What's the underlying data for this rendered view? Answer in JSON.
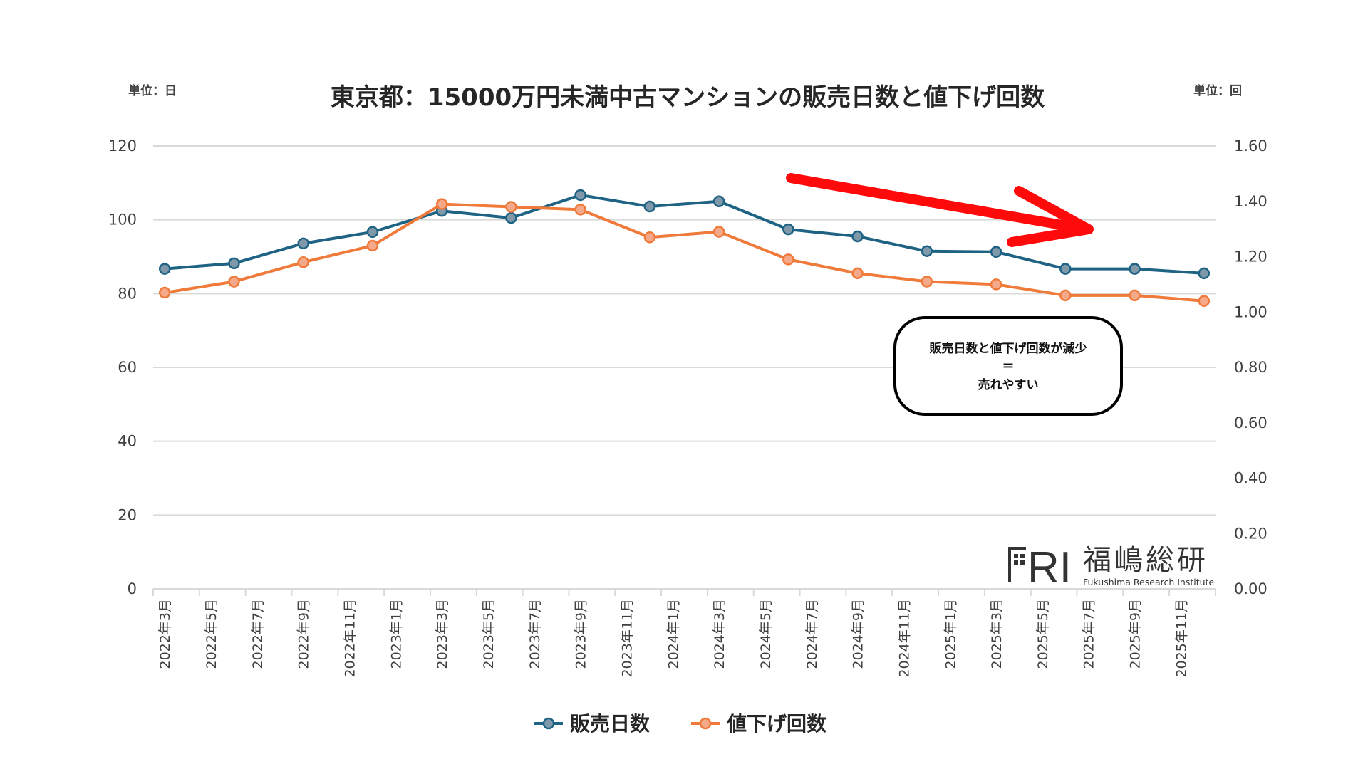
{
  "chart_data": {
    "type": "line",
    "title": "東京都：15000万円未満中古マンションの販売日数と値下げ回数",
    "left_unit_label": "単位：日",
    "right_unit_label": "単位：回",
    "x_tick_labels": [
      "2022年3月",
      "2022年5月",
      "2022年7月",
      "2022年9月",
      "2022年11月",
      "2023年1月",
      "2023年3月",
      "2023年5月",
      "2023年7月",
      "2023年9月",
      "2023年11月",
      "2024年1月",
      "2024年3月",
      "2024年5月",
      "2024年7月",
      "2024年9月",
      "2024年11月",
      "2025年1月",
      "2025年3月",
      "2025年5月",
      "2025年7月",
      "2025年9月",
      "2025年11月"
    ],
    "x": [
      "2022-03",
      "2022-06",
      "2022-09",
      "2022-12",
      "2023-03",
      "2023-06",
      "2023-09",
      "2023-12",
      "2024-03",
      "2024-06",
      "2024-09",
      "2024-12",
      "2025-03",
      "2025-06",
      "2025-09",
      "2025-12"
    ],
    "x_range": [
      "2022-03",
      "2025-12"
    ],
    "y_left": {
      "range": [
        0,
        120
      ],
      "ticks": [
        "0",
        "20",
        "40",
        "60",
        "80",
        "100",
        "120"
      ]
    },
    "y_right": {
      "range": [
        0,
        1.6
      ],
      "ticks": [
        "0.00",
        "0.20",
        "0.40",
        "0.60",
        "0.80",
        "1.00",
        "1.20",
        "1.40",
        "1.60"
      ]
    },
    "grid": true,
    "legend_position": "bottom",
    "series": [
      {
        "name": "販売日数",
        "axis": "left",
        "color": "#1f6384",
        "marker_fill": "#7f98aa",
        "values": [
          86.7,
          88.2,
          93.6,
          96.7,
          102.4,
          100.5,
          106.7,
          103.6,
          105.0,
          97.4,
          95.5,
          91.5,
          91.3,
          86.7,
          86.7,
          85.5
        ]
      },
      {
        "name": "値下げ回数",
        "axis": "right",
        "color": "#ef7a3a",
        "marker_fill": "#f4a98b",
        "values": [
          1.07,
          1.11,
          1.18,
          1.24,
          1.39,
          1.38,
          1.37,
          1.27,
          1.29,
          1.19,
          1.14,
          1.11,
          1.1,
          1.06,
          1.06,
          1.04
        ]
      }
    ],
    "annotation": {
      "lines": [
        "販売日数と値下げ回数が減少",
        "＝",
        "売れやすい"
      ],
      "arrow_color": "#ff0a0a"
    }
  },
  "logo": {
    "mark": "FRI",
    "name_ja": "福嶋総研",
    "name_en": "Fukushima Research Institute"
  }
}
